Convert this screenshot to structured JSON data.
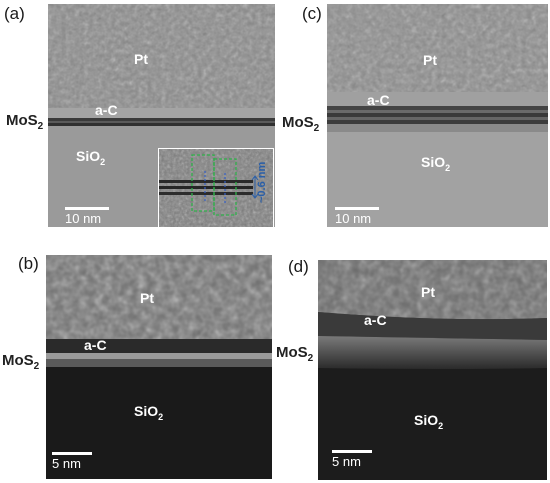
{
  "figure": {
    "panels": [
      {
        "id": "a",
        "tag": "(a)",
        "scale": "10 nm"
      },
      {
        "id": "b",
        "tag": "(b)",
        "scale": "5 nm"
      },
      {
        "id": "c",
        "tag": "(c)",
        "scale": "10 nm"
      },
      {
        "id": "d",
        "tag": "(d)",
        "scale": "5 nm"
      }
    ],
    "labels": {
      "pt": "Pt",
      "ac": "a-C",
      "mos2_base": "MoS",
      "mos2_sub": "2",
      "sio2_base": "SiO",
      "sio2_sub": "2",
      "inset_measure": "~0.6 nm"
    }
  }
}
